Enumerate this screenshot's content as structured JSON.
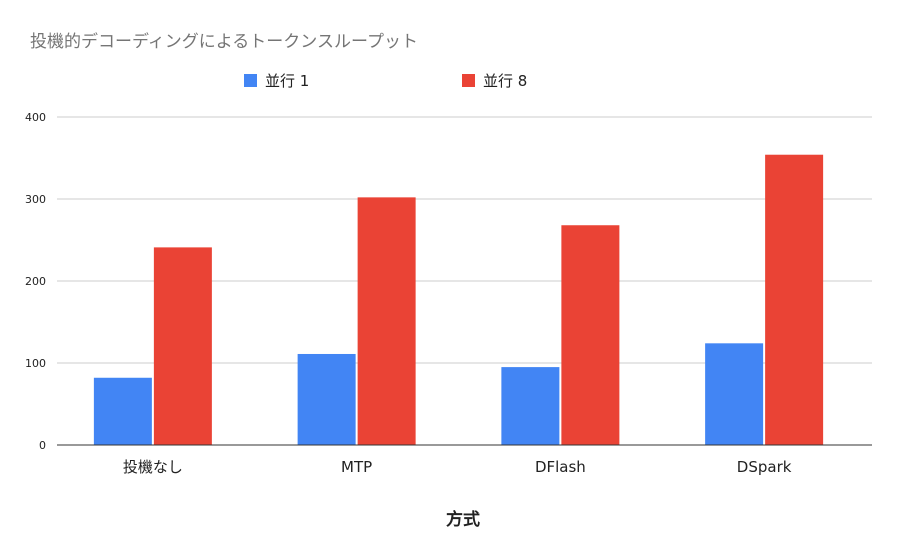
{
  "chart_data": {
    "type": "bar",
    "title": "投機的デコーディングによるトークンスループット",
    "xlabel": "方式",
    "ylabel": "",
    "categories": [
      "投機なし",
      "MTP",
      "DFlash",
      "DSpark"
    ],
    "series": [
      {
        "name": "並行 1",
        "color": "#4285F4",
        "values": [
          82,
          111,
          95,
          124
        ]
      },
      {
        "name": "並行 8",
        "color": "#EA4335",
        "values": [
          241,
          302,
          268,
          354
        ]
      }
    ],
    "ylim": [
      0,
      400
    ],
    "yticks": [
      0,
      100,
      200,
      300,
      400
    ],
    "grid": true,
    "legend_position": "top"
  }
}
